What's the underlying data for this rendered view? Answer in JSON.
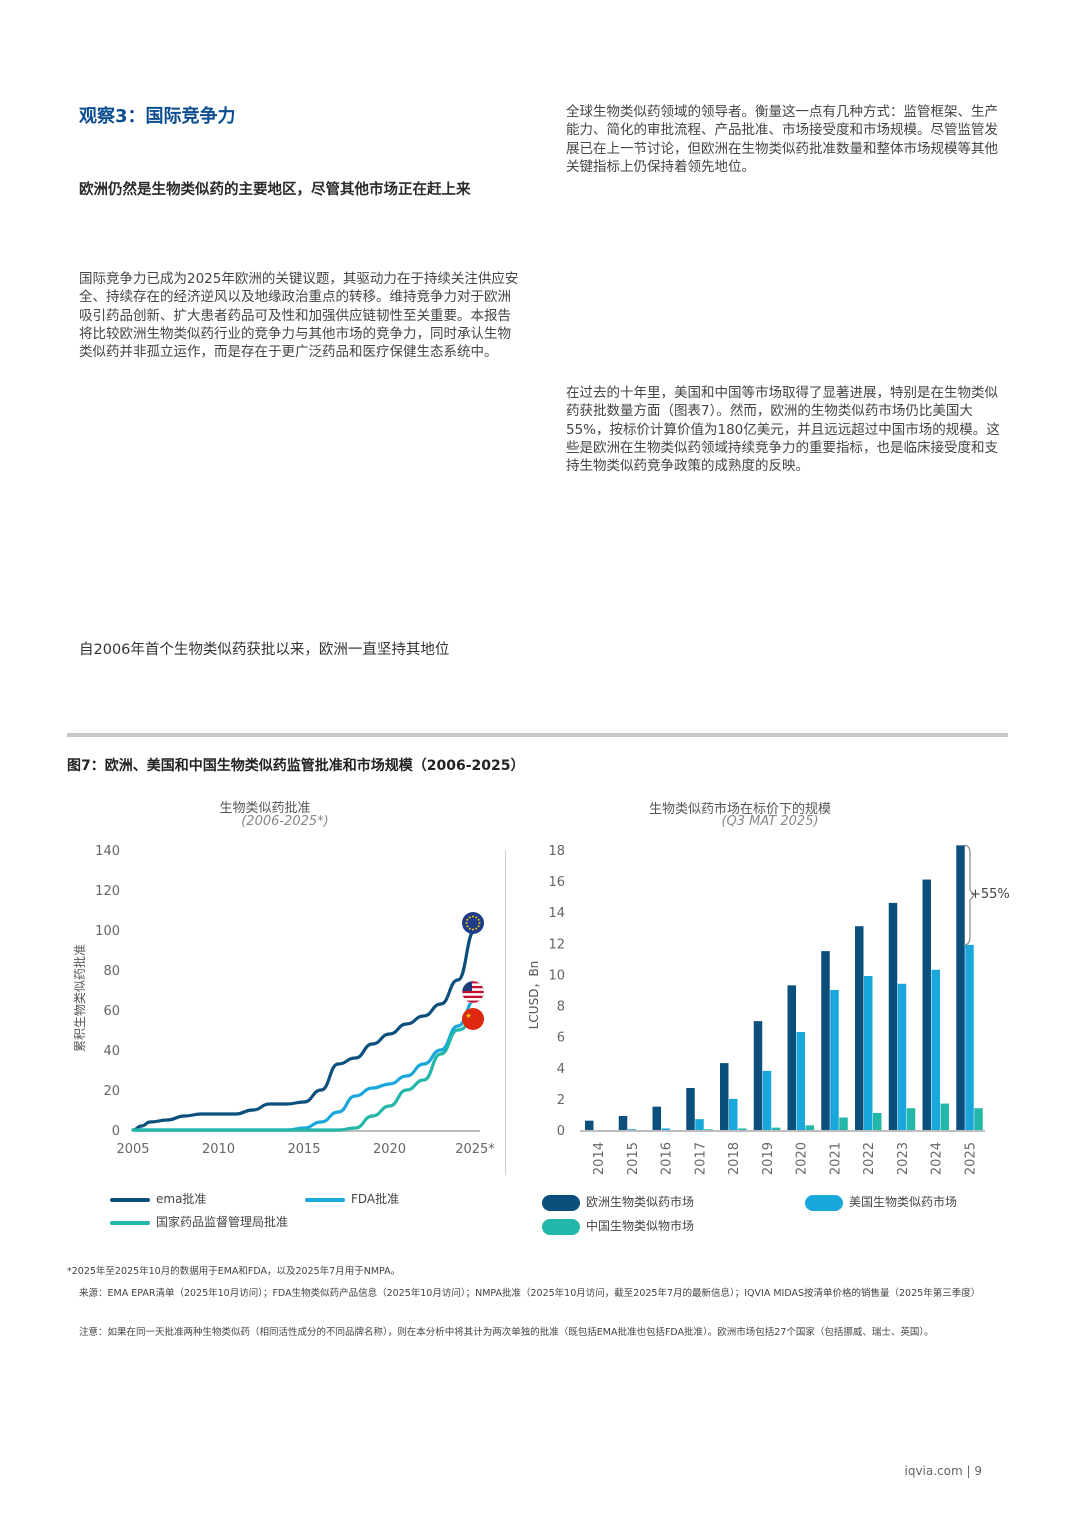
{
  "heading": "观察3：国际竞争力",
  "subheading": "欧洲仍然是生物类似药的主要地区，尽管其他市场正在赶上来",
  "paragraph_left": "国际竞争力已成为2025年欧洲的关键议题，其驱动力在于持续关注供应安全、持续存在的经济逆风以及地缘政治重点的转移。维持竞争力对于欧洲吸引药品创新、扩大患者药品可及性和加强供应链韧性至关重要。本报告将比较欧洲生物类似药行业的竞争力与其他市场的竞争力，同时承认生物类似药并非孤立运作，而是存在于更广泛药品和医疗保健生态系统中。",
  "paragraph_right1": "全球生物类似药领域的领导者。衡量这一点有几种方式：监管框架、生产能力、简化的审批流程、产品批准、市场接受度和市场规模。尽管监管发展已在上一节讨论，但欧洲在生物类似药批准数量和整体市场规模等其他关键指标上仍保持着领先地位。",
  "paragraph_right2": "在过去的十年里，美国和中国等市场取得了显著进展，特别是在生物类似药获批数量方面（图表7）。然而，欧洲的生物类似药市场仍比美国大55%，按标价计算价值为180亿美元，并且远远超过中国市场的规模。这些是欧洲在生物类似药领域持续竞争力的重要指标，也是临床接受度和支持生物类似药竞争政策的成熟度的反映。",
  "sub_lead": "自2006年首个生物类似药获批以来，欧洲一直坚持其地位",
  "figure_title": "图7：欧洲、美国和中国生物类似药监管批准和市场规模（2006-2025）",
  "chart_data": [
    {
      "type": "line",
      "title": "生物类似药批准",
      "subtitle": "(2006-2025*)",
      "ylabel": "累积生物类似药批准",
      "xlabel": "",
      "xlim": [
        2005,
        2025
      ],
      "ylim": [
        0,
        140
      ],
      "yticks": [
        0,
        20,
        40,
        60,
        80,
        100,
        120,
        140
      ],
      "xticks": [
        "2005",
        "2010",
        "2015",
        "2020",
        "2025*"
      ],
      "series": [
        {
          "name": "ema批准",
          "color": "#0b4f7c",
          "flag": "eu",
          "points": [
            [
              2005,
              0
            ],
            [
              2005.5,
              2
            ],
            [
              2006,
              4
            ],
            [
              2007,
              5
            ],
            [
              2008,
              7
            ],
            [
              2009,
              8
            ],
            [
              2010,
              8
            ],
            [
              2011,
              8
            ],
            [
              2012,
              10
            ],
            [
              2013,
              13
            ],
            [
              2014,
              13
            ],
            [
              2015,
              14
            ],
            [
              2016,
              20
            ],
            [
              2017,
              33
            ],
            [
              2018,
              36
            ],
            [
              2019,
              43
            ],
            [
              2020,
              48
            ],
            [
              2021,
              53
            ],
            [
              2022,
              57
            ],
            [
              2023,
              63
            ],
            [
              2024,
              75
            ],
            [
              2025,
              100
            ]
          ]
        },
        {
          "name": "FDA批准",
          "color": "#1aa7dc",
          "flag": "us",
          "points": [
            [
              2005,
              0
            ],
            [
              2014,
              0
            ],
            [
              2015,
              1
            ],
            [
              2016,
              4
            ],
            [
              2017,
              9
            ],
            [
              2018,
              17
            ],
            [
              2019,
              21
            ],
            [
              2020,
              23
            ],
            [
              2021,
              27
            ],
            [
              2022,
              33
            ],
            [
              2023,
              40
            ],
            [
              2024,
              52
            ],
            [
              2025,
              65
            ]
          ]
        },
        {
          "name": "国家药品监督管理局批准",
          "color": "#22b7a8",
          "flag": "cn",
          "points": [
            [
              2005,
              0
            ],
            [
              2017,
              0
            ],
            [
              2018,
              1
            ],
            [
              2019,
              7
            ],
            [
              2020,
              12
            ],
            [
              2021,
              20
            ],
            [
              2022,
              25
            ],
            [
              2023,
              38
            ],
            [
              2024,
              50
            ],
            [
              2025,
              55
            ]
          ]
        }
      ]
    },
    {
      "type": "bar",
      "title": "生物类似药市场在标价下的规模",
      "subtitle": "(Q3 MAT 2025)",
      "ylabel": "LCUSD，Bn",
      "xlabel": "",
      "ylim": [
        0,
        18
      ],
      "yticks": [
        0,
        2,
        4,
        6,
        8,
        10,
        12,
        14,
        16,
        18
      ],
      "categories": [
        "2014",
        "2015",
        "2016",
        "2017",
        "2018",
        "2019",
        "2020",
        "2021",
        "2022",
        "2023",
        "2024",
        "2025"
      ],
      "series": [
        {
          "name": "欧洲生物类似药市场",
          "color": "#0b4f7c",
          "values": [
            0.6,
            0.9,
            1.5,
            2.7,
            4.3,
            7.0,
            9.3,
            11.5,
            13.1,
            14.6,
            16.1,
            18.3
          ]
        },
        {
          "name": "美国生物类似药市场",
          "color": "#1aa7dc",
          "values": [
            0.0,
            0.05,
            0.1,
            0.7,
            2.0,
            3.8,
            6.3,
            9.0,
            9.9,
            9.4,
            10.3,
            11.9
          ]
        },
        {
          "name": "中国生物类似物市场",
          "color": "#22b7a8",
          "values": [
            0.0,
            0.0,
            0.0,
            0.05,
            0.1,
            0.15,
            0.3,
            0.8,
            1.1,
            1.4,
            1.7,
            1.4
          ]
        }
      ],
      "annotation": "+55%"
    }
  ],
  "footnote": "*2025年至2025年10月的数据用于EMA和FDA，以及2025年7月用于NMPA。",
  "source": "来源：EMA EPAR清单（2025年10月访问）；FDA生物类似药产品信息（2025年10月访问）；NMPA批准（2025年10月访问，截至2025年7月的最新信息）；IQVIA MIDAS按清单价格的销售量（2025年第三季度）",
  "note": "注意：如果在同一天批准两种生物类似药（相同活性成分的不同品牌名称），则在本分析中将其计为两次单独的批准（既包括EMA批准也包括FDA批准）。欧洲市场包括27个国家（包括挪威、瑞士、英国）。",
  "footer": "iqvia.com | 9"
}
